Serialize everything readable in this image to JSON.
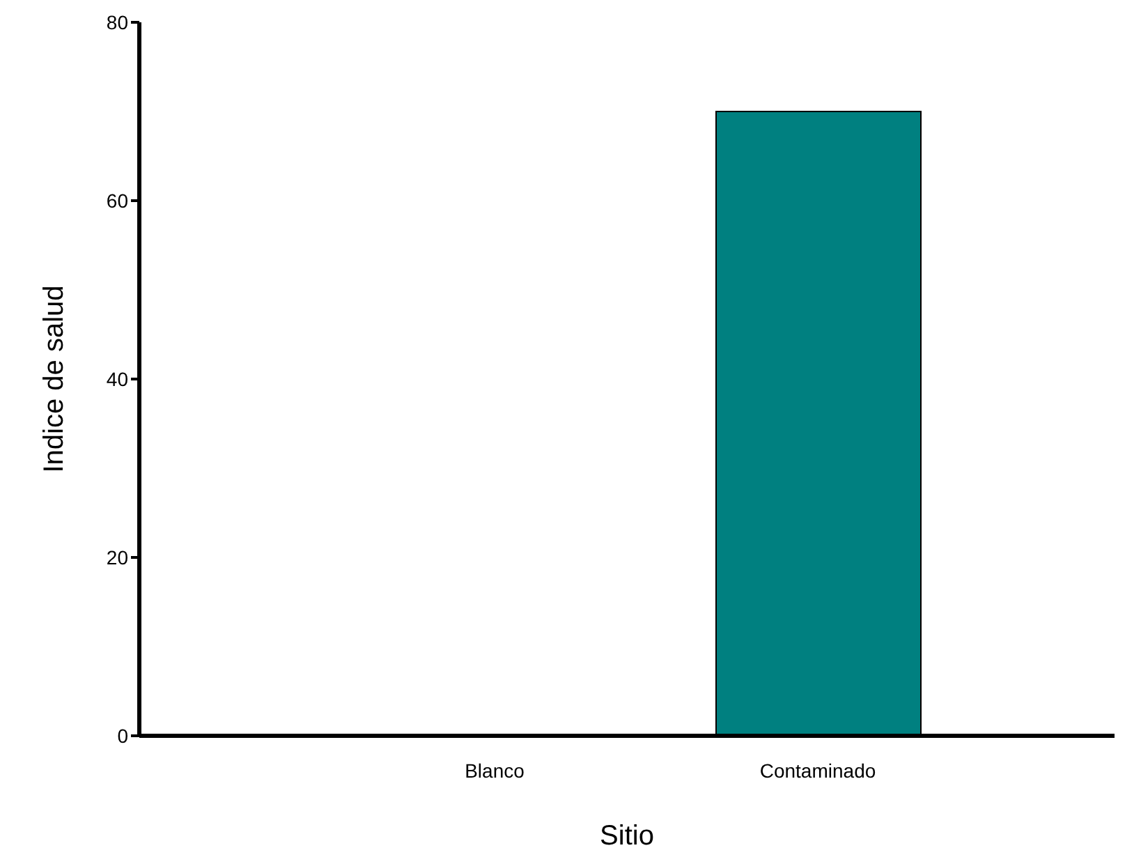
{
  "chart_data": {
    "type": "bar",
    "xlabel": "Sitio",
    "ylabel": "Indice de salud",
    "categories": [
      "Blanco",
      "Contaminado"
    ],
    "values": [
      0,
      70
    ],
    "color": "#008080",
    "ylim": [
      0,
      80
    ],
    "yticks": [
      0,
      20,
      40,
      60,
      80
    ],
    "grid": false,
    "legend": false
  }
}
